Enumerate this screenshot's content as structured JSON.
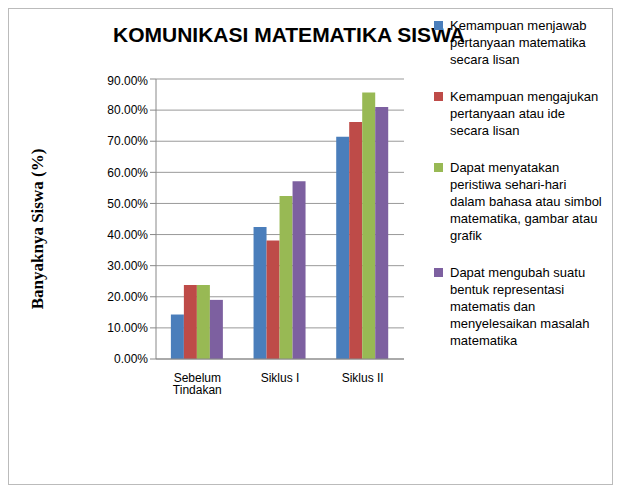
{
  "chart_data": {
    "type": "bar",
    "title": "KOMUNIKASI MATEMATIKA SISWA",
    "y_label": "Banyaknya Siswa (%)",
    "categories": [
      "Sebelum Tindakan",
      "Siklus I",
      "Siklus II"
    ],
    "series": [
      {
        "name": "Kemampuan menjawab pertanyaan matematika secara lisan",
        "color": "#4a7ebb",
        "values": [
          14.3,
          42.4,
          71.4
        ]
      },
      {
        "name": "Kemampuan mengajukan pertanyaan atau ide secara lisan",
        "color": "#be4b48",
        "values": [
          23.8,
          38.1,
          76.2
        ]
      },
      {
        "name": "Dapat menyatakan peristiwa sehari-hari dalam bahasa atau simbol matematika, gambar atau grafik",
        "color": "#98b954",
        "values": [
          23.8,
          52.4,
          85.7
        ]
      },
      {
        "name": "Dapat mengubah suatu bentuk representasi matematis dan menyelesaikan masalah matematika",
        "color": "#7d60a0",
        "values": [
          19.0,
          57.1,
          81.0
        ]
      }
    ],
    "ylim": [
      0,
      90
    ],
    "yticks": [
      {
        "value": 0,
        "label": "0.00%"
      },
      {
        "value": 10,
        "label": "10.00%"
      },
      {
        "value": 20,
        "label": "20.00%"
      },
      {
        "value": 30,
        "label": "30.00%"
      },
      {
        "value": 40,
        "label": "40.00%"
      },
      {
        "value": 50,
        "label": "50.00%"
      },
      {
        "value": 60,
        "label": "60.00%"
      },
      {
        "value": 70,
        "label": "70.00%"
      },
      {
        "value": 80,
        "label": "80.00%"
      },
      {
        "value": 90,
        "label": "90.00%"
      }
    ],
    "grid": true,
    "legend": "right"
  }
}
